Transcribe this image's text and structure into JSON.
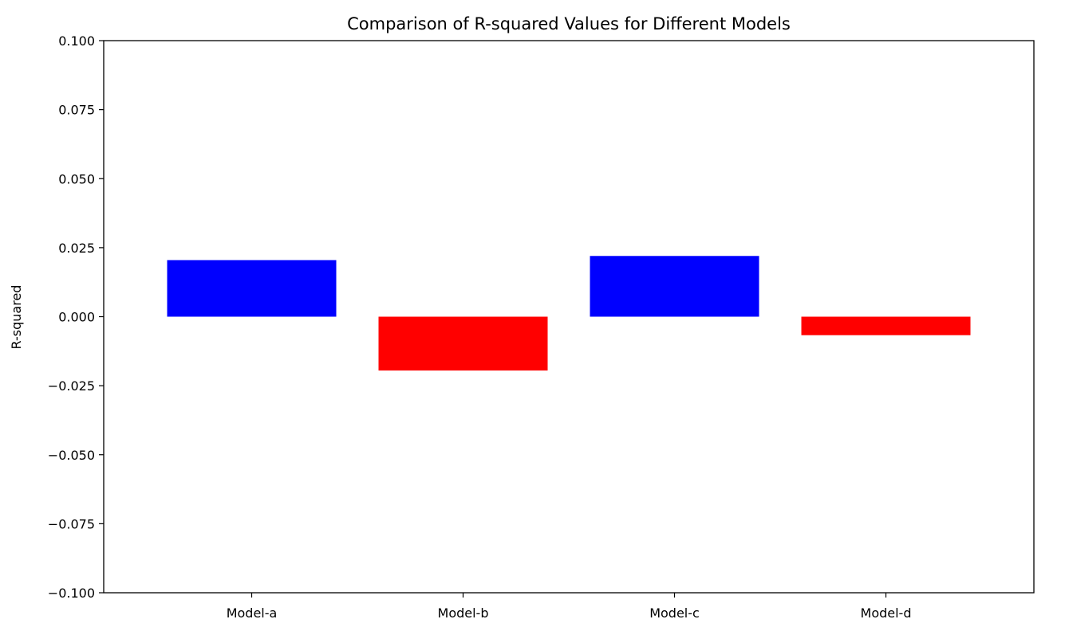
{
  "chart_data": {
    "type": "bar",
    "title": "Comparison of R-squared Values for Different Models",
    "xlabel": "",
    "ylabel": "R-squared",
    "categories": [
      "Model-a",
      "Model-b",
      "Model-c",
      "Model-d"
    ],
    "values": [
      0.0205,
      -0.0195,
      0.022,
      -0.0067
    ],
    "colors": [
      "#0000ff",
      "#ff0000",
      "#0000ff",
      "#ff0000"
    ],
    "ylim": [
      -0.1,
      0.1
    ],
    "yticks": [
      -0.1,
      -0.075,
      -0.05,
      -0.025,
      0.0,
      0.025,
      0.05,
      0.075,
      0.1
    ],
    "ytick_labels": [
      "−0.100",
      "−0.075",
      "−0.050",
      "−0.025",
      "0.000",
      "0.025",
      "0.050",
      "0.075",
      "0.100"
    ],
    "grid": false,
    "legend": "none"
  }
}
